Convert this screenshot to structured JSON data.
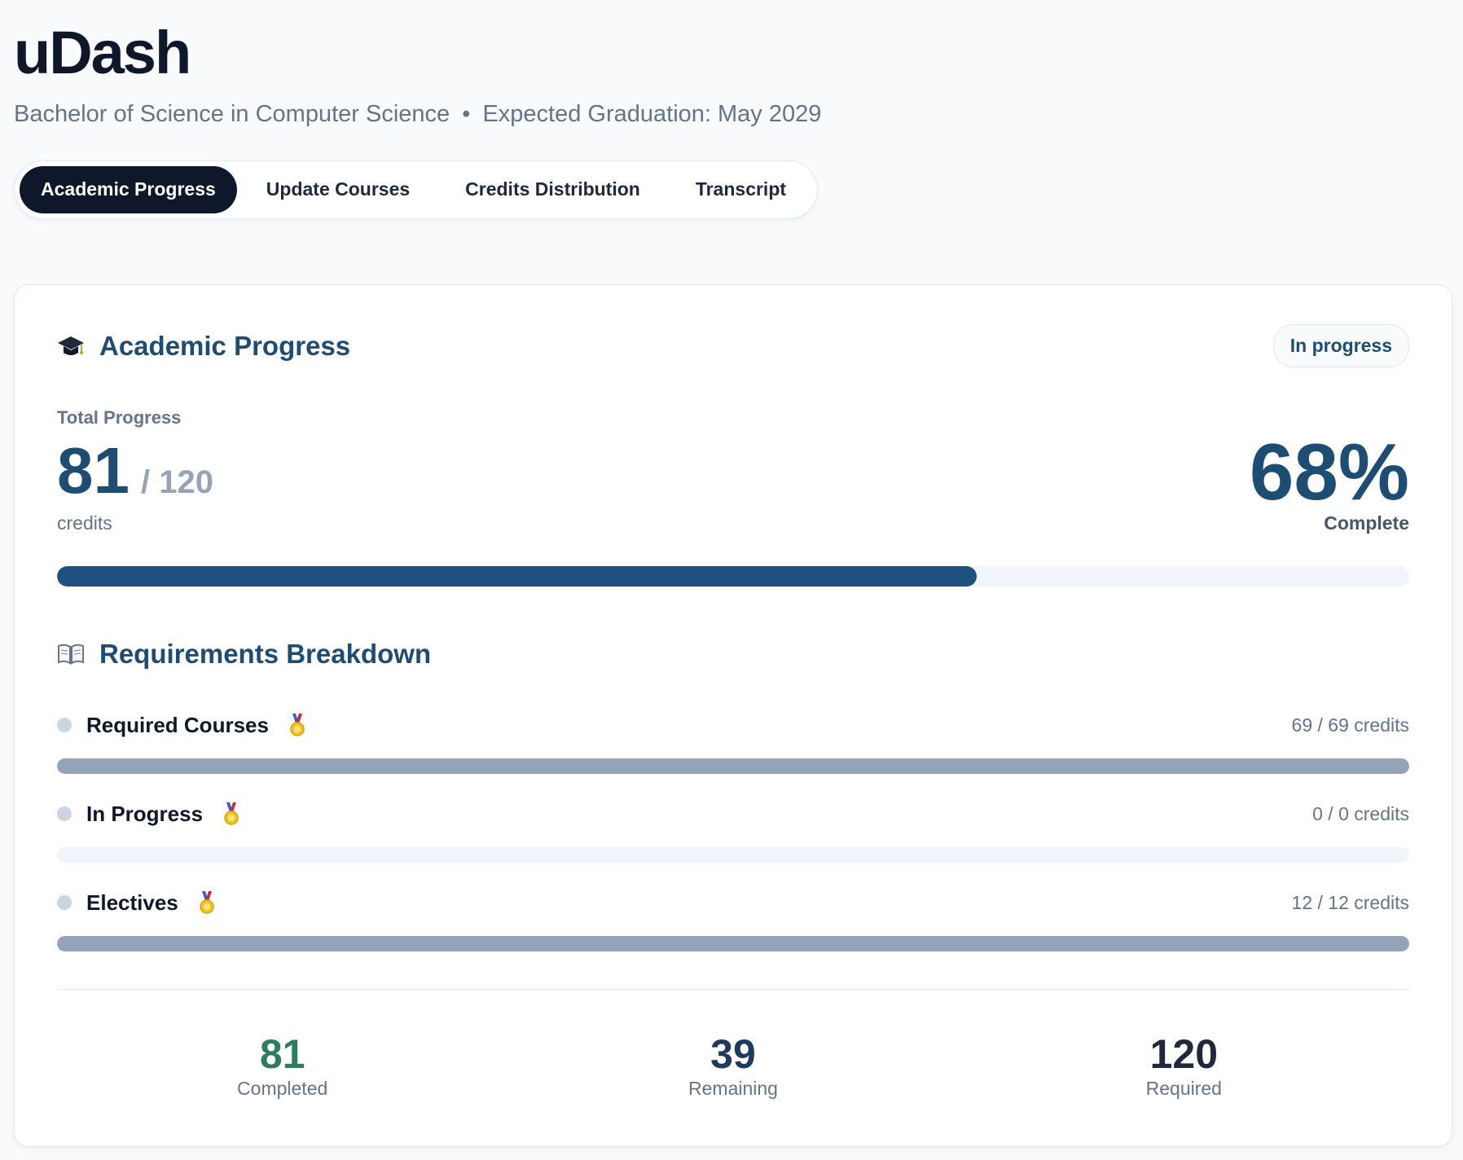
{
  "app": {
    "title": "uDash",
    "degree": "Bachelor of Science in Computer Science",
    "separator": "•",
    "graduation": "Expected Graduation: May 2029"
  },
  "tabs": [
    {
      "label": "Academic Progress",
      "active": true
    },
    {
      "label": "Update Courses",
      "active": false
    },
    {
      "label": "Credits Distribution",
      "active": false
    },
    {
      "label": "Transcript",
      "active": false
    }
  ],
  "progress_card": {
    "icon": "graduation-cap-icon",
    "title": "Academic Progress",
    "status_badge": "In progress",
    "total_label": "Total Progress",
    "completed_credits": "81",
    "total_credits_text": "/ 120",
    "credits_unit": "credits",
    "percent_text": "68%",
    "percent_label": "Complete",
    "progress_fraction": 0.68,
    "colors": {
      "accent": "#1e5080",
      "title": "#1e4d73",
      "completed": "#2e7d5b"
    }
  },
  "requirements": {
    "icon": "open-book-icon",
    "title": "Requirements Breakdown",
    "items": [
      {
        "name": "Required Courses",
        "icon": "medal-icon",
        "credits": "69 / 69 credits",
        "fraction": 1.0
      },
      {
        "name": "In Progress",
        "icon": "medal-icon",
        "credits": "0 / 0 credits",
        "fraction": 0.0
      },
      {
        "name": "Electives",
        "icon": "medal-icon",
        "credits": "12 / 12 credits",
        "fraction": 1.0
      }
    ]
  },
  "stats": [
    {
      "value": "81",
      "label": "Completed",
      "color": "#2e7d5b"
    },
    {
      "value": "39",
      "label": "Remaining",
      "color": "#1e3a5f"
    },
    {
      "value": "120",
      "label": "Required",
      "color": "#1e293b"
    }
  ]
}
